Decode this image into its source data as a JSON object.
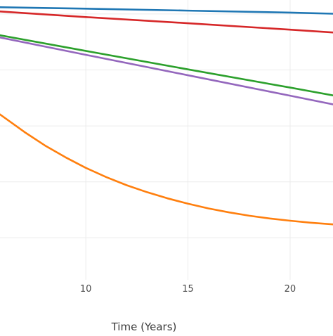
{
  "chart_data": {
    "type": "line",
    "title": "",
    "xlabel": "Time (Years)",
    "ylabel": "",
    "xlim": [
      5.8,
      22.1
    ],
    "ylim": [
      0,
      1
    ],
    "x_ticks": [
      10,
      15,
      20
    ],
    "x_tick_labels": [
      "10",
      "15",
      "20"
    ],
    "y_grid_values": [
      0.95,
      0.75,
      0.55,
      0.35,
      0.15
    ],
    "grid": true,
    "legend": "none",
    "series": [
      {
        "color": "#1f77b4",
        "x": [
          5.8,
          10,
          15,
          20,
          22.1
        ],
        "y": [
          0.974,
          0.969,
          0.962,
          0.955,
          0.951
        ]
      },
      {
        "color": "#d62728",
        "x": [
          5.8,
          10,
          15,
          20,
          22.1
        ],
        "y": [
          0.959,
          0.939,
          0.917,
          0.894,
          0.884
        ]
      },
      {
        "color": "#2ca02c",
        "x": [
          5.8,
          10,
          15,
          20,
          22.1
        ],
        "y": [
          0.874,
          0.818,
          0.752,
          0.687,
          0.659
        ]
      },
      {
        "color": "#9467bd",
        "x": [
          5.8,
          10,
          15,
          20,
          22.1
        ],
        "y": [
          0.866,
          0.804,
          0.731,
          0.658,
          0.627
        ]
      },
      {
        "color": "#ff7f0e",
        "x": [
          5.8,
          7,
          8,
          9,
          10,
          11,
          12,
          13,
          14,
          15,
          16,
          17,
          18,
          19,
          20,
          21,
          22.1
        ],
        "y": [
          0.591,
          0.528,
          0.48,
          0.438,
          0.4,
          0.367,
          0.338,
          0.313,
          0.291,
          0.272,
          0.255,
          0.241,
          0.229,
          0.219,
          0.211,
          0.204,
          0.198
        ]
      }
    ]
  }
}
